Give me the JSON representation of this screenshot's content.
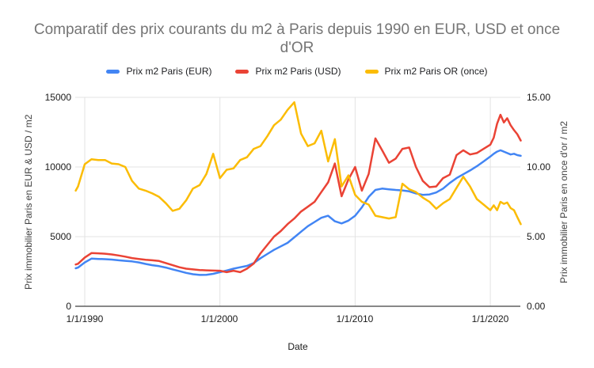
{
  "title": "Comparatif des prix courants du m2 à Paris depuis 1990 en EUR, USD et once d'OR",
  "title_lines": [
    "Comparatif des prix courants du m2 à Paris depuis 1990 en EUR, USD et once",
    "d'OR"
  ],
  "colors": {
    "background": "#ffffff",
    "title": "#757575",
    "grid": "#e3e3e3",
    "axis_line": "#424242",
    "tick_label": "#1a1a1a",
    "series_eur": "#4285f4",
    "series_usd": "#ea4335",
    "series_or": "#fbbc04"
  },
  "chart_data": {
    "type": "line",
    "title": "Comparatif des prix courants du m2 à Paris depuis 1990 en EUR, USD et once d'OR",
    "xlabel": "Date",
    "grid": true,
    "legend_position": "top",
    "x_axis": {
      "tick_labels": [
        "1/1/1990",
        "1/1/2000",
        "1/1/2010",
        "1/1/2020"
      ],
      "tick_values": [
        1990,
        2000,
        2010,
        2020
      ],
      "min": 1989.33,
      "max": 2022.42
    },
    "left_axis": {
      "title": "Prix immobilier Paris en EUR & USD / m2",
      "min": 0,
      "max": 15000,
      "tick_values": [
        15000,
        10000,
        5000,
        0
      ],
      "tick_labels": [
        "15000",
        "10000",
        "5000",
        "0"
      ]
    },
    "right_axis": {
      "title": "Prix immobilier Paris en once d'or / m2",
      "min": 0,
      "max": 15,
      "tick_values": [
        15,
        10,
        5,
        0
      ],
      "tick_labels": [
        "15.00",
        "10.00",
        "5.00",
        "0.00"
      ]
    },
    "x": [
      1989.33,
      1989.5,
      1990,
      1990.5,
      1991,
      1991.5,
      1992,
      1992.5,
      1993,
      1993.5,
      1994,
      1994.5,
      1995,
      1995.5,
      1996,
      1996.5,
      1997,
      1997.5,
      1998,
      1998.5,
      1999,
      1999.5,
      2000,
      2000.5,
      2001,
      2001.5,
      2002,
      2002.5,
      2003,
      2003.5,
      2004,
      2004.5,
      2005,
      2005.5,
      2006,
      2006.5,
      2007,
      2007.5,
      2008,
      2008.5,
      2009,
      2009.5,
      2010,
      2010.5,
      2011,
      2011.5,
      2012,
      2012.5,
      2013,
      2013.5,
      2014,
      2014.5,
      2015,
      2015.5,
      2016,
      2016.5,
      2017,
      2017.5,
      2018,
      2018.5,
      2019,
      2019.5,
      2020,
      2020.25,
      2020.5,
      2020.75,
      2021,
      2021.25,
      2021.5,
      2021.75,
      2022,
      2022.25
    ],
    "series": [
      {
        "name": "Prix m2 Paris (EUR)",
        "color": "#4285f4",
        "axis": "left",
        "values": [
          2730,
          2780,
          3150,
          3420,
          3400,
          3380,
          3350,
          3300,
          3260,
          3220,
          3150,
          3040,
          2950,
          2880,
          2780,
          2650,
          2520,
          2400,
          2300,
          2250,
          2260,
          2330,
          2450,
          2570,
          2700,
          2800,
          2900,
          3100,
          3450,
          3750,
          4050,
          4300,
          4550,
          4950,
          5350,
          5750,
          6050,
          6350,
          6500,
          6100,
          5950,
          6150,
          6500,
          7100,
          7850,
          8350,
          8450,
          8400,
          8350,
          8320,
          8250,
          8100,
          8000,
          8030,
          8170,
          8450,
          8850,
          9200,
          9480,
          9750,
          10050,
          10400,
          10750,
          10950,
          11100,
          11200,
          11100,
          11000,
          10900,
          10950,
          10850,
          10800
        ]
      },
      {
        "name": "Prix m2 Paris (USD)",
        "color": "#ea4335",
        "axis": "left",
        "values": [
          3000,
          3050,
          3500,
          3820,
          3800,
          3770,
          3720,
          3650,
          3560,
          3460,
          3400,
          3340,
          3300,
          3250,
          3100,
          2950,
          2800,
          2700,
          2650,
          2600,
          2580,
          2560,
          2550,
          2450,
          2550,
          2450,
          2700,
          3070,
          3800,
          4400,
          5000,
          5400,
          5900,
          6300,
          6800,
          7150,
          7500,
          8200,
          8900,
          10250,
          7900,
          9100,
          10000,
          8300,
          9500,
          12050,
          11200,
          10300,
          10600,
          11300,
          11400,
          10000,
          9000,
          8550,
          8600,
          9200,
          9450,
          10850,
          11200,
          10900,
          11000,
          11300,
          11600,
          12100,
          13100,
          13750,
          13200,
          13500,
          13000,
          12650,
          12350,
          11900
        ]
      },
      {
        "name": "Prix m2 Paris OR (once)",
        "color": "#fbbc04",
        "axis": "right",
        "values": [
          8.3,
          8.6,
          10.2,
          10.55,
          10.5,
          10.5,
          10.25,
          10.2,
          10.0,
          9.0,
          8.45,
          8.3,
          8.1,
          7.85,
          7.4,
          6.85,
          7.0,
          7.6,
          8.45,
          8.7,
          9.5,
          10.95,
          9.2,
          9.8,
          9.9,
          10.5,
          10.7,
          11.3,
          11.5,
          12.2,
          13.0,
          13.4,
          14.1,
          14.65,
          12.4,
          11.5,
          11.7,
          12.6,
          10.4,
          12.0,
          8.6,
          9.4,
          8.0,
          7.5,
          7.3,
          6.5,
          6.4,
          6.3,
          6.4,
          8.8,
          8.4,
          8.2,
          7.8,
          7.5,
          7.0,
          7.4,
          7.7,
          8.5,
          9.3,
          8.6,
          7.7,
          7.3,
          6.9,
          7.25,
          6.9,
          7.5,
          7.35,
          7.45,
          7.05,
          6.9,
          6.4,
          5.9
        ]
      }
    ]
  }
}
